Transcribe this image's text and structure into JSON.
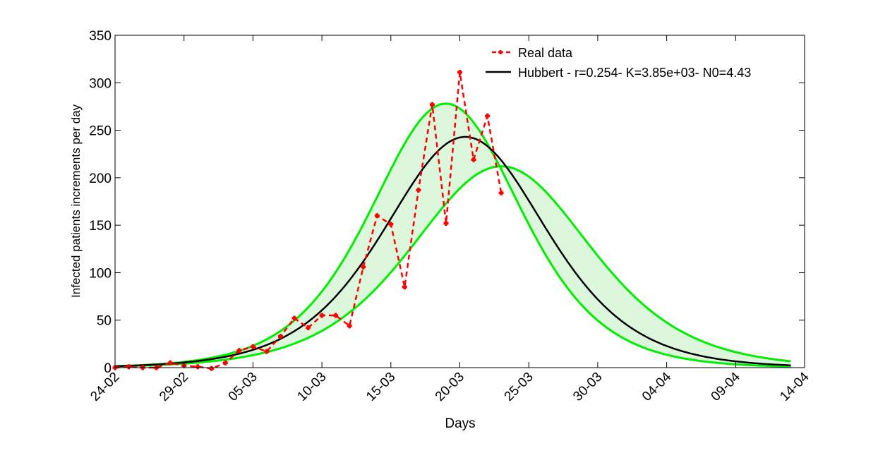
{
  "chart_data": {
    "type": "line",
    "title": "",
    "xlabel": "Days",
    "ylabel": "Infected patients increments per day",
    "xlim": [
      0,
      50
    ],
    "ylim": [
      0,
      350
    ],
    "yticks": [
      0,
      50,
      100,
      150,
      200,
      250,
      300,
      350
    ],
    "xticks": [
      {
        "x": 0,
        "label": "24-02"
      },
      {
        "x": 5,
        "label": "29-02"
      },
      {
        "x": 10,
        "label": "05-03"
      },
      {
        "x": 15,
        "label": "10-03"
      },
      {
        "x": 20,
        "label": "15-03"
      },
      {
        "x": 25,
        "label": "20-03"
      },
      {
        "x": 30,
        "label": "25-03"
      },
      {
        "x": 35,
        "label": "30-03"
      },
      {
        "x": 40,
        "label": "04-04"
      },
      {
        "x": 45,
        "label": "09-04"
      },
      {
        "x": 50,
        "label": "14-04"
      }
    ],
    "legend": {
      "position": "top-right",
      "entries": [
        {
          "label": "Real data",
          "color": "#ff0000",
          "style": "dashed-marker"
        },
        {
          "label": "Hubbert - r=0.254- K=3.85e+03- N0=4.43",
          "color": "#000000",
          "style": "solid"
        }
      ]
    },
    "series": [
      {
        "name": "Real data",
        "color": "#ff0000",
        "x": [
          0,
          1,
          2,
          3,
          4,
          5,
          6,
          7,
          8,
          9,
          10,
          11,
          12,
          13,
          14,
          15,
          16,
          17,
          18,
          19,
          20,
          21,
          22,
          23,
          24,
          25,
          26,
          27,
          28
        ],
        "values": [
          0,
          1,
          0,
          0,
          5,
          2,
          1,
          -1,
          5,
          18,
          22,
          17,
          33,
          52,
          42,
          55,
          55,
          44,
          106,
          160,
          151,
          85,
          187,
          277,
          152,
          311,
          219,
          265,
          184
        ]
      },
      {
        "name": "Hubbert - r=0.254- K=3.85e+03- N0=4.43",
        "color": "#000000",
        "model": {
          "K": 3850,
          "peak": 243,
          "center": 25.4,
          "scale": 3.94
        },
        "x_range": [
          0,
          49
        ]
      },
      {
        "name": "upper bound",
        "color": "#00ee00",
        "model": {
          "peak": 278,
          "center": 24.0,
          "scale": 3.65
        },
        "x_range": [
          0,
          49
        ]
      },
      {
        "name": "lower bound",
        "color": "#00ee00",
        "model": {
          "peak": 212,
          "center": 28.0,
          "scale": 4.35
        },
        "x_range": [
          0,
          49
        ]
      }
    ],
    "band_fill": "#ddf7dd",
    "grid": false
  }
}
